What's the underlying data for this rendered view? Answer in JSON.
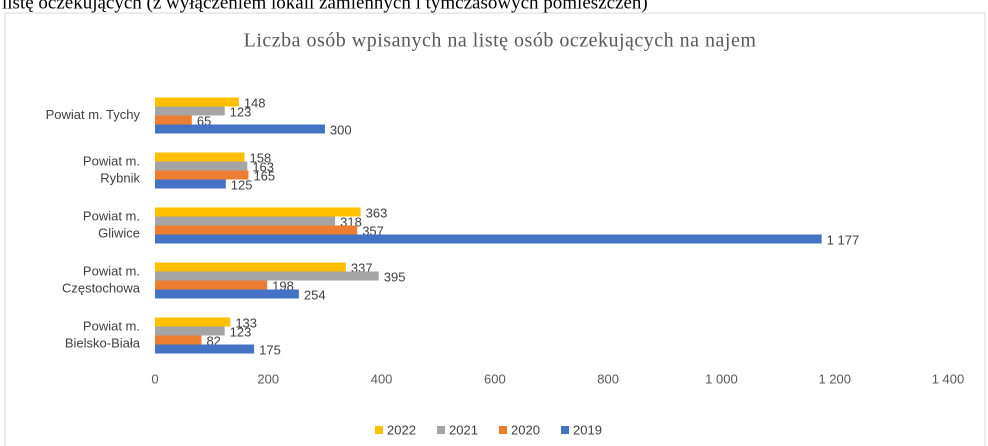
{
  "page": {
    "caption": "listę oczekujących (z wyłączeniem lokali zamiennych i tymczasowych pomieszczeń)"
  },
  "chart_data": {
    "type": "barh",
    "title": "Liczba osób wpisanych na listę osób oczekujących na najem",
    "categories": [
      [
        "Powiat m. Tychy"
      ],
      [
        "Powiat m.",
        "Rybnik"
      ],
      [
        "Powiat m.",
        "Gliwice"
      ],
      [
        "Powiat m.",
        "Częstochowa"
      ],
      [
        "Powiat m.",
        "Bielsko-Biała"
      ]
    ],
    "series": [
      {
        "name": "2022",
        "color": "#ffc000",
        "values": [
          148,
          158,
          363,
          337,
          133
        ]
      },
      {
        "name": "2021",
        "color": "#a5a5a5",
        "values": [
          123,
          163,
          318,
          395,
          123
        ]
      },
      {
        "name": "2020",
        "color": "#ed7d31",
        "values": [
          65,
          165,
          357,
          198,
          82
        ]
      },
      {
        "name": "2019",
        "color": "#4472c4",
        "values": [
          300,
          125,
          1177,
          254,
          175
        ],
        "value_labels": [
          "300",
          "125",
          "1 177",
          "254",
          "175"
        ]
      }
    ],
    "xlim": [
      0,
      1400
    ],
    "xticks": [
      0,
      200,
      400,
      600,
      800,
      {
        "value": 1000,
        "label": "1 000"
      },
      {
        "value": 1200,
        "label": "1 200"
      },
      {
        "value": 1400,
        "label": "1 400"
      }
    ],
    "grid": false,
    "legend": "bottom"
  }
}
